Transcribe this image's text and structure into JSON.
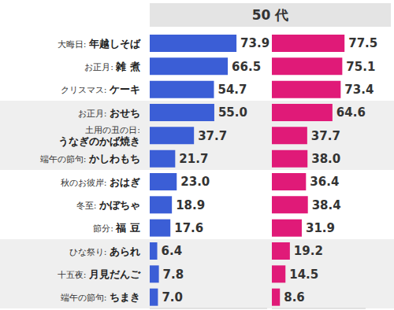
{
  "chart_data": {
    "type": "bar",
    "title": "50 代",
    "orientation": "horizontal",
    "data_labels": true,
    "tick_labels": "y",
    "categories": [
      "大晦日: 年越しそば",
      "お正月: 雑 煮",
      "クリスマス: ケーキ",
      "お正月: おせち",
      "土用の丑の日: うなぎのかば焼き",
      "端午の節句: かしわもち",
      "秋のお彼岸: おはぎ",
      "冬至: かぼちゃ",
      "節分: 福 豆",
      "ひな祭り: あられ",
      "十五夜: 月見だんご",
      "端午の節句: ちまき"
    ],
    "series": [
      {
        "color": "#3b5ed6",
        "values": [
          73.9,
          66.5,
          54.7,
          55.0,
          37.7,
          21.7,
          23.0,
          18.9,
          17.6,
          6.4,
          7.8,
          7.0
        ],
        "value_labels": [
          "73.9",
          "66.5",
          "54.7",
          "55.0",
          "37.7",
          "21.7",
          "23.0",
          "18.9",
          "17.6",
          "6.4",
          "7.8",
          "7.0"
        ]
      },
      {
        "color": "#e01a78",
        "values": [
          77.5,
          75.1,
          73.4,
          64.6,
          37.7,
          38.0,
          36.4,
          38.4,
          31.9,
          19.2,
          14.5,
          8.6
        ],
        "value_labels": [
          "77.5",
          "75.1",
          "73.4",
          "64.6",
          "37.7",
          "38.0",
          "36.4",
          "38.4",
          "31.9",
          "19.2",
          "14.5",
          "8.6"
        ]
      }
    ],
    "xlim": [
      0,
      100
    ],
    "xticks": [
      0,
      100
    ]
  }
}
